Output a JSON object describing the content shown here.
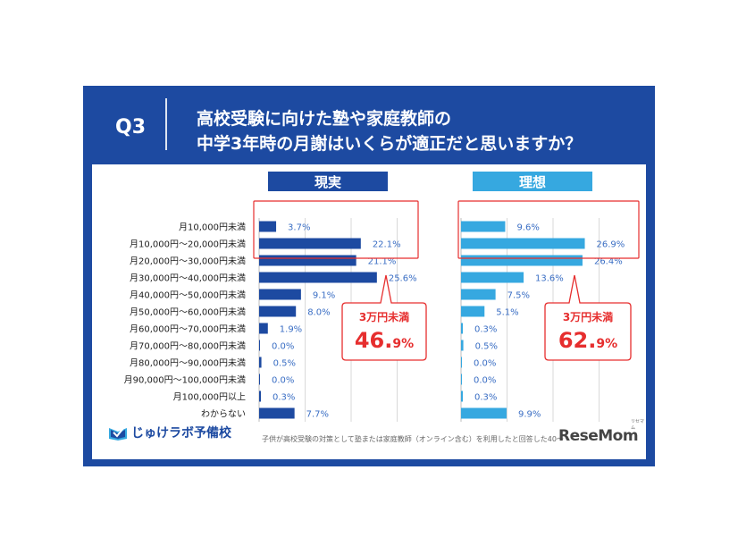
{
  "question": {
    "label": "Q3",
    "line1": "高校受験に向けた塾や家庭教師の",
    "line2": "中学3年時の月謝はいくらが適正だと思いますか？"
  },
  "colors": {
    "brand": "#1d4aa1",
    "ideal": "#36a8e0",
    "highlight": "#e62e2e",
    "label_text": "#3a6ec4"
  },
  "chart_data": {
    "type": "bar",
    "orientation": "horizontal",
    "categories": [
      "月10,000円未満",
      "月10,000円～20,000円未満",
      "月20,000円～30,000円未満",
      "月30,000円～40,000円未満",
      "月40,000円～50,000円未満",
      "月50,000円～60,000円未満",
      "月60,000円～70,000円未満",
      "月70,000円～80,000円未満",
      "月80,000円～90,000円未満",
      "月90,000円～100,000円未満",
      "月100,000円以上",
      "わからない"
    ],
    "series": [
      {
        "name": "現実",
        "values": [
          3.7,
          22.1,
          21.1,
          25.6,
          9.1,
          8.0,
          1.9,
          0.0,
          0.5,
          0.0,
          0.3,
          7.7
        ],
        "labels": [
          "3.7%",
          "22.1%",
          "21.1%",
          "25.6%",
          "9.1%",
          "8.0%",
          "1.9%",
          "0.0%",
          "0.5%",
          "0.0%",
          "0.3%",
          "7.7%"
        ]
      },
      {
        "name": "理想",
        "values": [
          9.6,
          26.9,
          26.4,
          13.6,
          7.5,
          5.1,
          0.3,
          0.5,
          0.0,
          0.0,
          0.3,
          9.9
        ],
        "labels": [
          "9.6%",
          "26.9%",
          "26.4%",
          "13.6%",
          "7.5%",
          "5.1%",
          "0.3%",
          "0.5%",
          "0.0%",
          "0.0%",
          "0.3%",
          "9.9%"
        ]
      }
    ],
    "xlim": [
      0,
      40
    ],
    "grid": true,
    "annotations": [
      {
        "series": "現実",
        "text": "3万円未満",
        "value_main": "46.",
        "value_small": "9%"
      },
      {
        "series": "理想",
        "text": "3万円未満",
        "value_main": "62.",
        "value_small": "9%"
      }
    ]
  },
  "footer": {
    "logo_text": "じゅけラボ予備校",
    "note": "子供が高校受験の対策として塾または家庭教師（オンライン含む）を利用したと回答した40～",
    "resemom": "ReseMom",
    "resemom_ruby": "リセマム"
  }
}
